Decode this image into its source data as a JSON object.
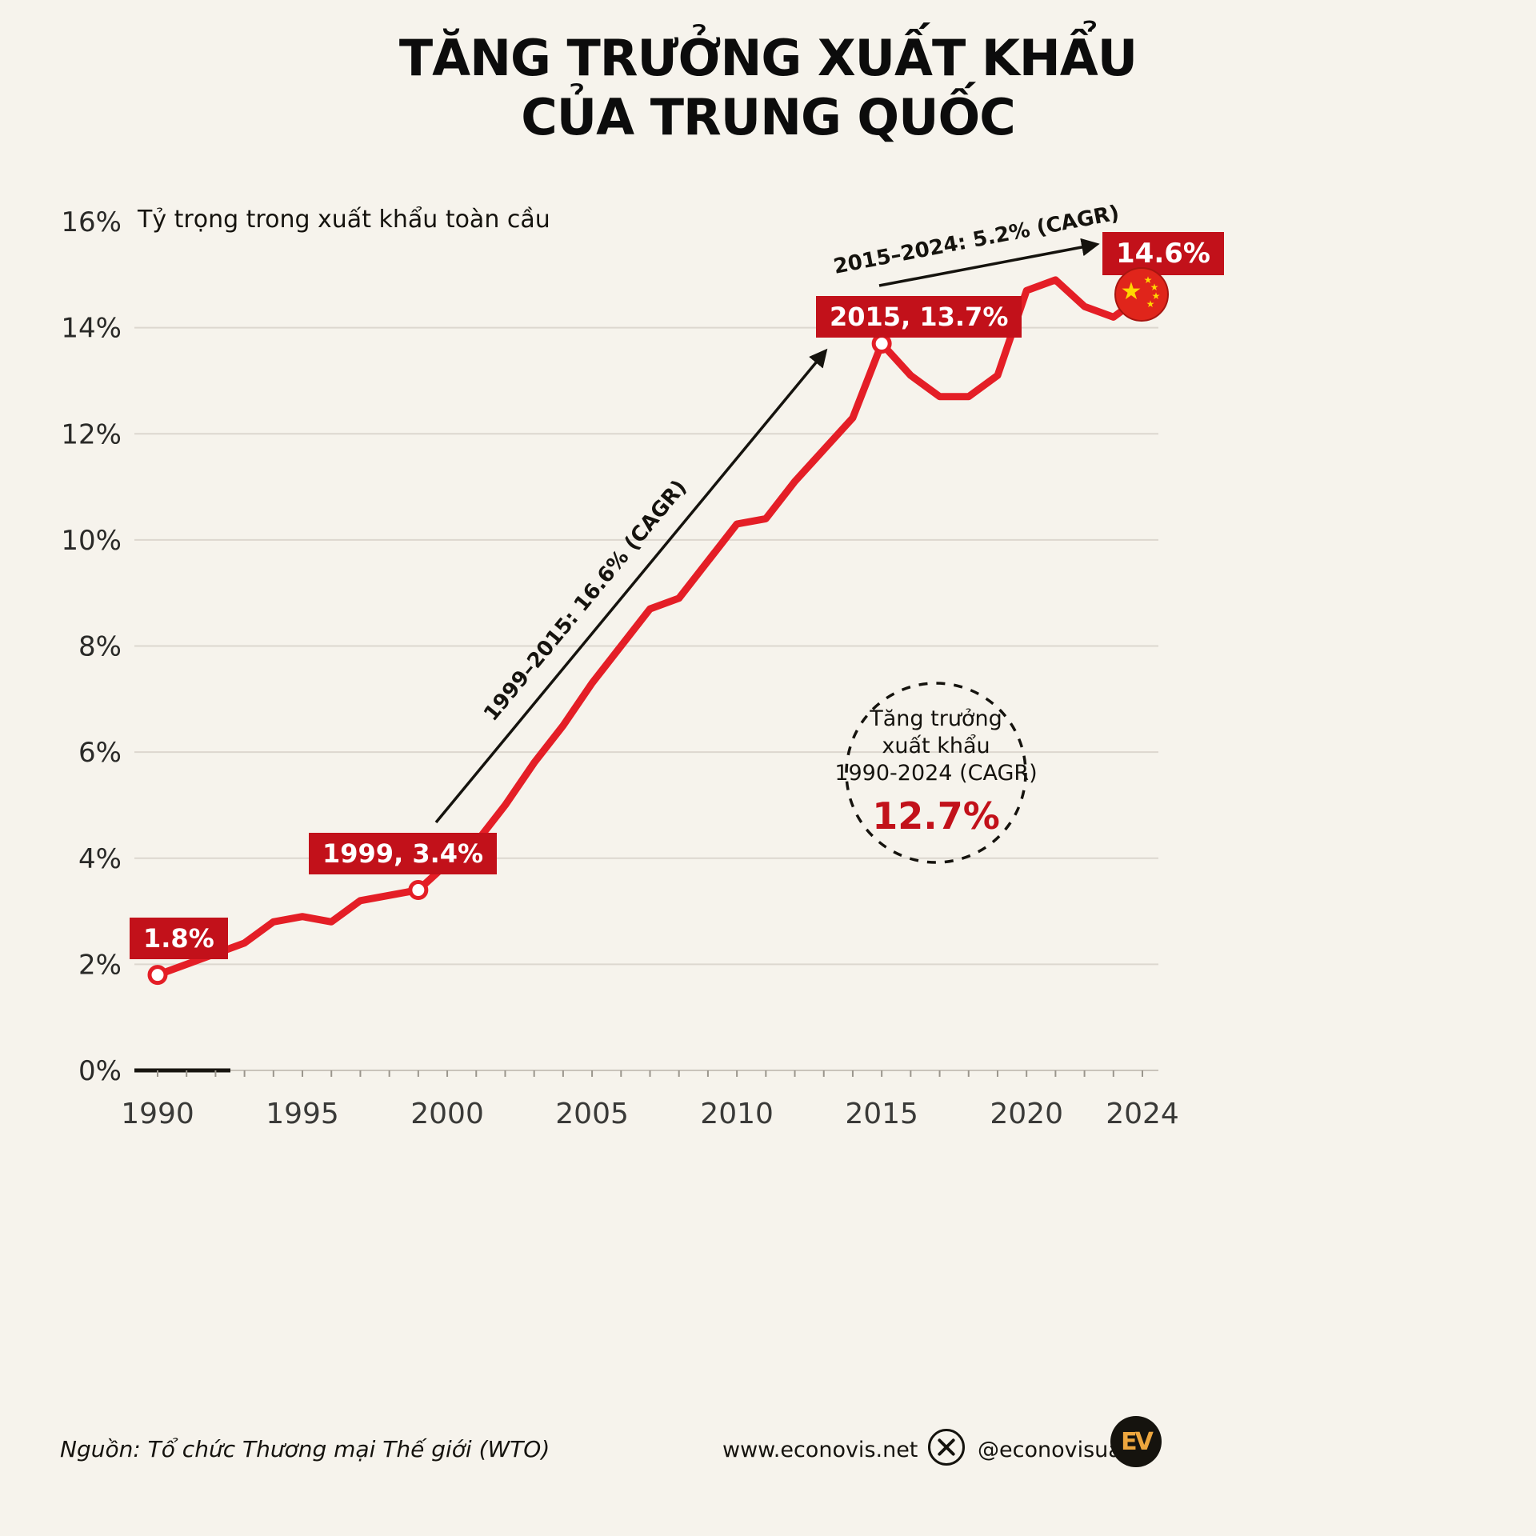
{
  "title": {
    "line1": "TĂNG TRƯỞNG XUẤT KHẨU",
    "line2": "CỦA TRUNG QUỐC"
  },
  "chart_data": {
    "type": "line",
    "title": "TĂNG TRƯỞNG XUẤT KHẨU CỦA TRUNG QUỐC",
    "ylabel": "Tỷ trọng trong xuất khẩu toàn cầu",
    "xlabel": "",
    "x": [
      1990,
      1991,
      1992,
      1993,
      1994,
      1995,
      1996,
      1997,
      1998,
      1999,
      2000,
      2001,
      2002,
      2003,
      2004,
      2005,
      2006,
      2007,
      2008,
      2009,
      2010,
      2011,
      2012,
      2013,
      2014,
      2015,
      2016,
      2017,
      2018,
      2019,
      2020,
      2021,
      2022,
      2023,
      2024
    ],
    "values": [
      1.8,
      2.0,
      2.2,
      2.4,
      2.8,
      2.9,
      2.8,
      3.2,
      3.3,
      3.4,
      3.9,
      4.3,
      5.0,
      5.8,
      6.5,
      7.3,
      8.0,
      8.7,
      8.9,
      9.6,
      10.3,
      10.4,
      11.1,
      11.7,
      12.3,
      13.7,
      13.1,
      12.7,
      12.7,
      13.1,
      14.7,
      14.9,
      14.4,
      14.2,
      14.6
    ],
    "ylim": [
      0,
      16
    ],
    "y_ticks": [
      0,
      2,
      4,
      6,
      8,
      10,
      12,
      14,
      16
    ],
    "x_ticks": [
      1990,
      1995,
      2000,
      2005,
      2010,
      2015,
      2020,
      2024
    ],
    "grid": true,
    "line_color": "#e41e26",
    "markers": [
      {
        "year": 1990,
        "value": 1.8,
        "style": "open"
      },
      {
        "year": 1999,
        "value": 3.4,
        "style": "open"
      },
      {
        "year": 2015,
        "value": 13.7,
        "style": "open"
      },
      {
        "year": 2024,
        "value": 14.6,
        "style": "flag"
      }
    ]
  },
  "annotations": {
    "badge_1990": "1.8%",
    "badge_1999": "1999, 3.4%",
    "badge_2015": "2015, 13.7%",
    "badge_2024": "14.6%",
    "arrow_1999_2015": "1999–2015: 16.6% (CAGR)",
    "arrow_2015_2024": "2015–2024: 5.2% (CAGR)",
    "cagr_circle": {
      "line1": "Tăng trưởng",
      "line2": "xuất khẩu",
      "line3": "1990-2024 (CAGR)",
      "value": "12.7%"
    }
  },
  "footer": {
    "source": "Nguồn: Tổ chức Thương mại Thế giới (WTO)",
    "website": "www.econovis.net",
    "social_handle": "@econovisuals",
    "logo_text": "EV"
  },
  "colors": {
    "background": "#f6f3ec",
    "line_red": "#e41e26",
    "badge_red": "#c2111a",
    "grid": "#dcd7cf",
    "text_dark": "#15130e",
    "flag_red": "#de2910",
    "star_gold": "#ffd700",
    "logo_gold": "#eda63e"
  }
}
